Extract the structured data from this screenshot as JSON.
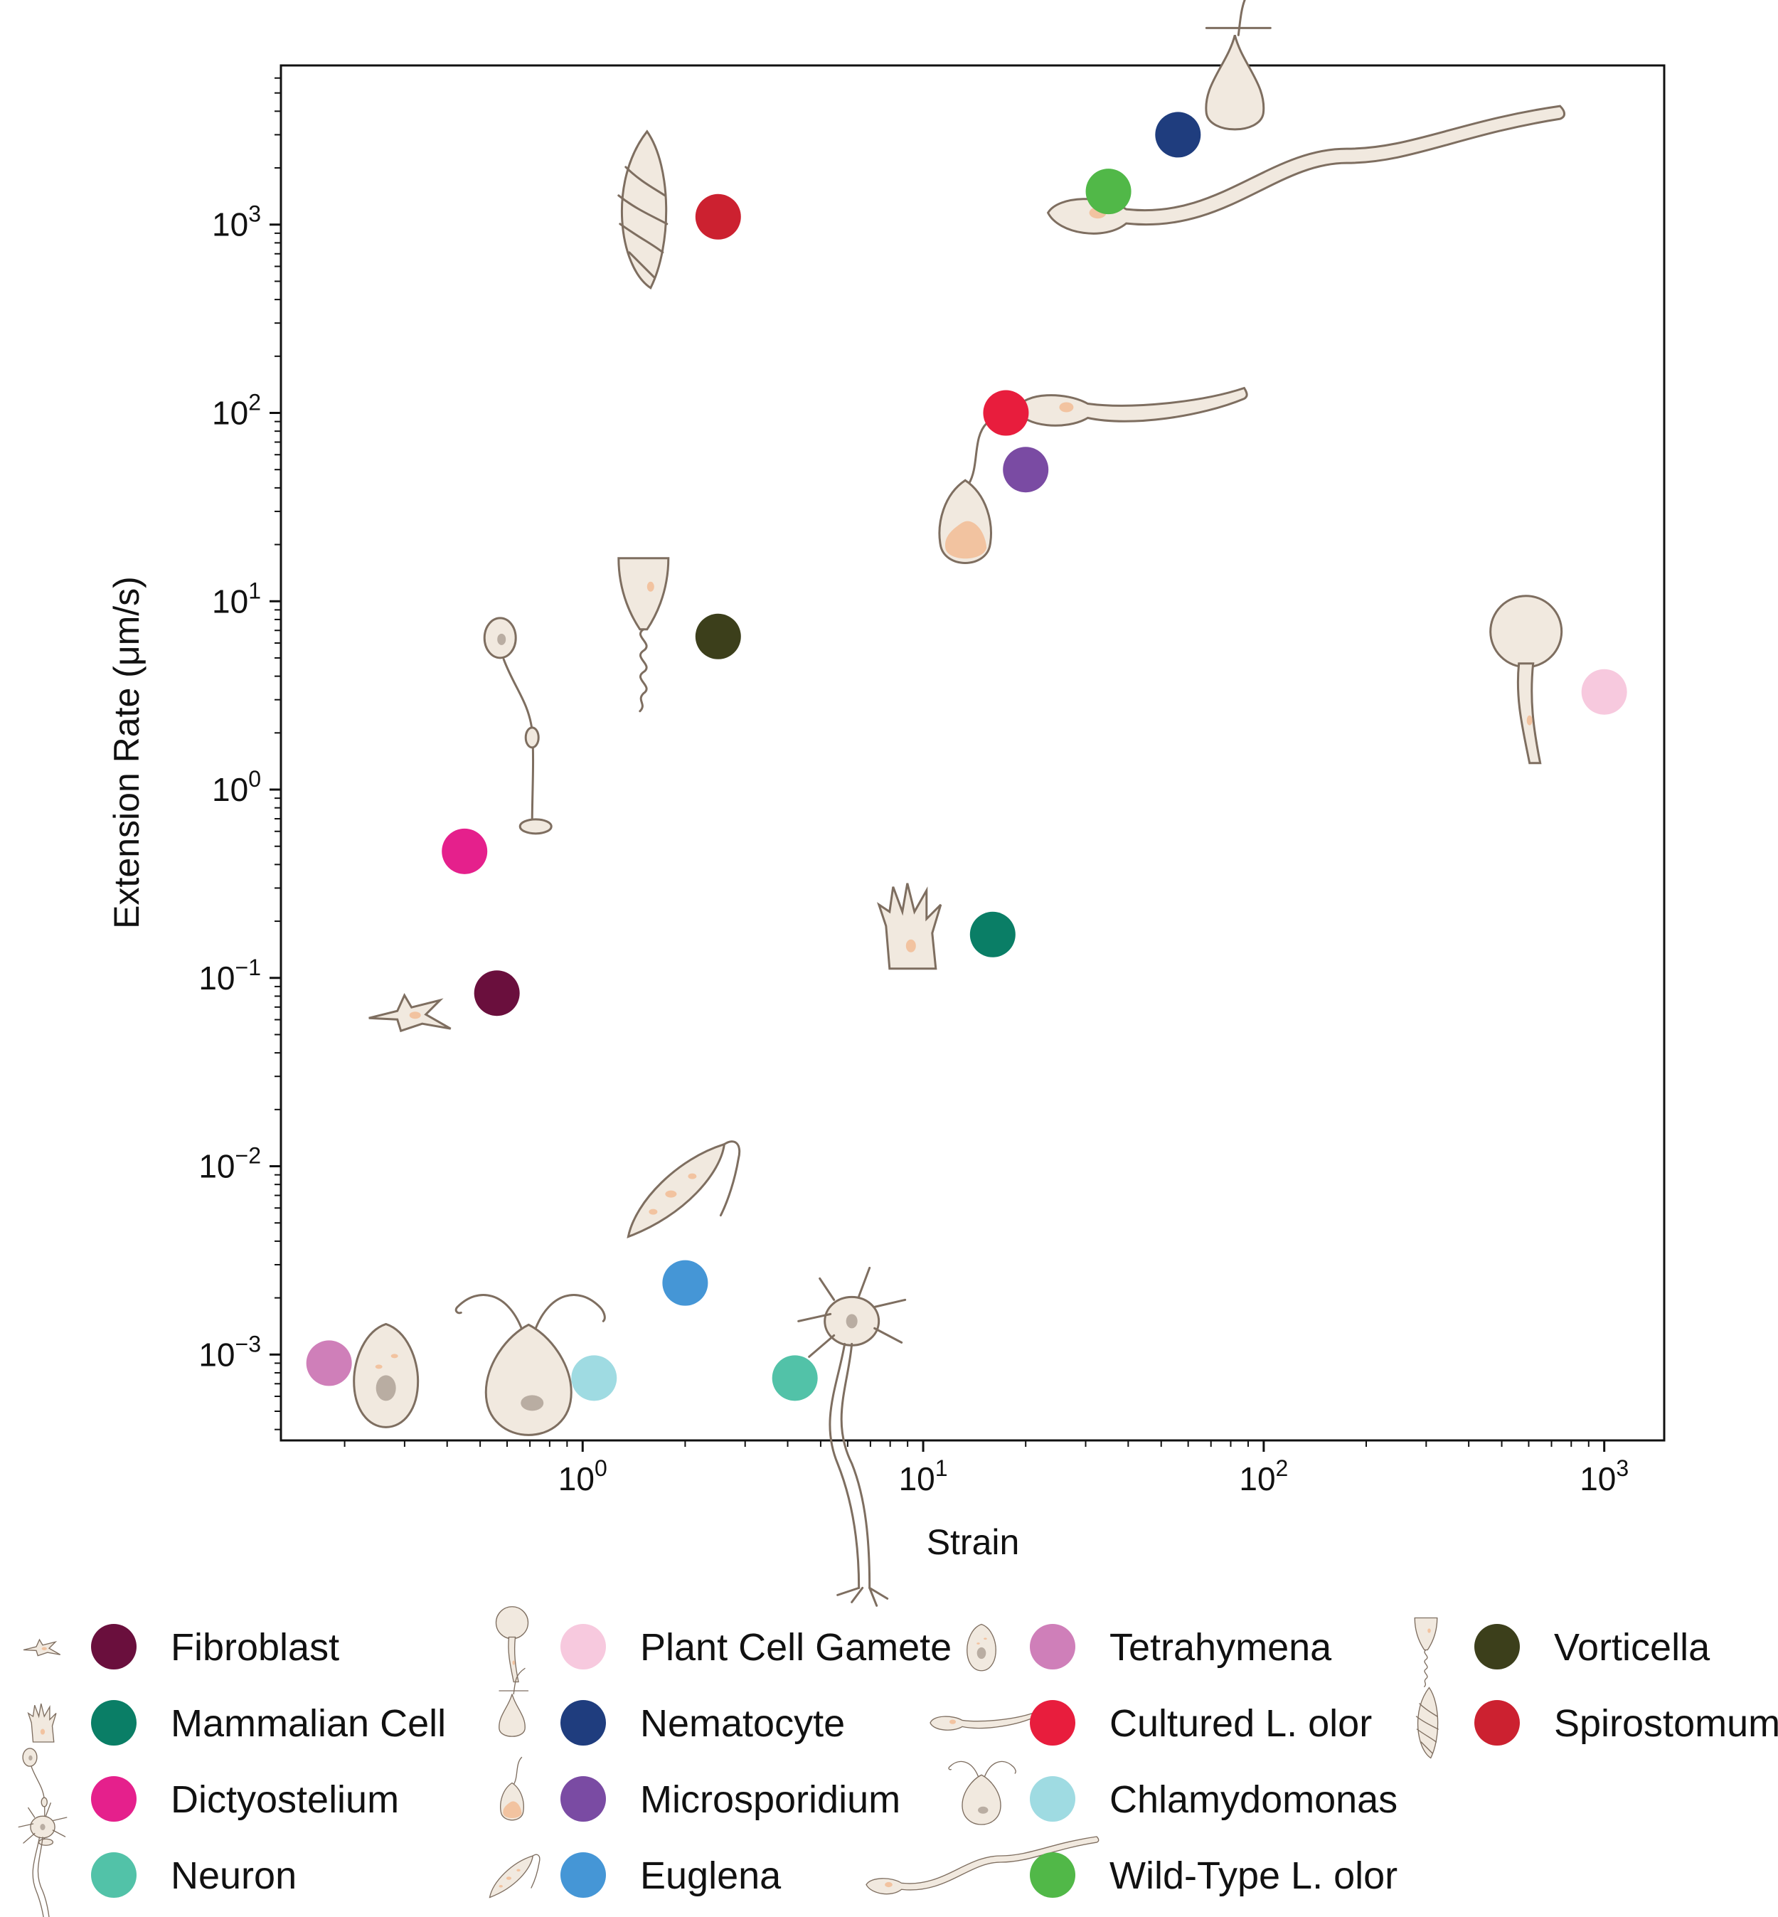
{
  "chart_data": {
    "type": "scatter",
    "title": "",
    "xlabel": "Strain",
    "ylabel": "Extension Rate (μm/s)",
    "x_scale": "log",
    "y_scale": "log",
    "xlim": [
      0.13,
      1500
    ],
    "ylim": [
      0.00035,
      7000
    ],
    "x_ticks": [
      {
        "value": 1,
        "base": "10",
        "exp": "0"
      },
      {
        "value": 10,
        "base": "10",
        "exp": "1"
      },
      {
        "value": 100,
        "base": "10",
        "exp": "2"
      },
      {
        "value": 1000,
        "base": "10",
        "exp": "3"
      }
    ],
    "y_ticks": [
      {
        "value": 0.001,
        "base": "10",
        "exp": "−3"
      },
      {
        "value": 0.01,
        "base": "10",
        "exp": "−2"
      },
      {
        "value": 0.1,
        "base": "10",
        "exp": "−1"
      },
      {
        "value": 1,
        "base": "10",
        "exp": "0"
      },
      {
        "value": 10,
        "base": "10",
        "exp": "1"
      },
      {
        "value": 100,
        "base": "10",
        "exp": "2"
      },
      {
        "value": 1000,
        "base": "10",
        "exp": "3"
      }
    ],
    "grid": false,
    "legend_position": "bottom",
    "series": [
      {
        "name": "Fibroblast",
        "x": 0.56,
        "y": 0.083,
        "color": "#6a0f3d",
        "icon": "fibroblast-icon"
      },
      {
        "name": "Mammalian Cell",
        "x": 16,
        "y": 0.17,
        "color": "#0a7e66",
        "icon": "mammalian-cell-icon"
      },
      {
        "name": "Dictyostelium",
        "x": 0.45,
        "y": 0.47,
        "color": "#e5208c",
        "icon": "dictyostelium-icon"
      },
      {
        "name": "Neuron",
        "x": 4.2,
        "y": 0.00075,
        "color": "#52c2a8",
        "icon": "neuron-icon"
      },
      {
        "name": "Plant Cell Gamete",
        "x": 1000,
        "y": 3.3,
        "color": "#f7c9de",
        "icon": "plant-cell-gamete-icon"
      },
      {
        "name": "Nematocyte",
        "x": 56,
        "y": 3000,
        "color": "#1f3d7e",
        "icon": "nematocyte-icon"
      },
      {
        "name": "Microsporidium",
        "x": 20,
        "y": 50,
        "color": "#7a4ba3",
        "icon": "microsporidium-icon"
      },
      {
        "name": "Euglena",
        "x": 2.0,
        "y": 0.0024,
        "color": "#4596d6",
        "icon": "euglena-icon"
      },
      {
        "name": "Tetrahymena",
        "x": 0.18,
        "y": 0.0009,
        "color": "#cf7fb9",
        "icon": "tetrahymena-icon"
      },
      {
        "name": "Cultured L. olor",
        "x": 17.5,
        "y": 100,
        "color": "#e81d3d",
        "icon": "cultured-l-olor-icon"
      },
      {
        "name": "Chlamydomonas",
        "x": 1.08,
        "y": 0.00075,
        "color": "#9fdbe2",
        "icon": "chlamydomonas-icon"
      },
      {
        "name": "Wild-Type L. olor",
        "x": 35,
        "y": 1500,
        "color": "#51b848",
        "icon": "wild-type-l-olor-icon"
      },
      {
        "name": "Vorticella",
        "x": 2.5,
        "y": 6.5,
        "color": "#3c3f1b",
        "icon": "vorticella-icon"
      },
      {
        "name": "Spirostomum",
        "x": 2.5,
        "y": 1100,
        "color": "#cc2130",
        "icon": "spirostomum-icon"
      }
    ]
  }
}
